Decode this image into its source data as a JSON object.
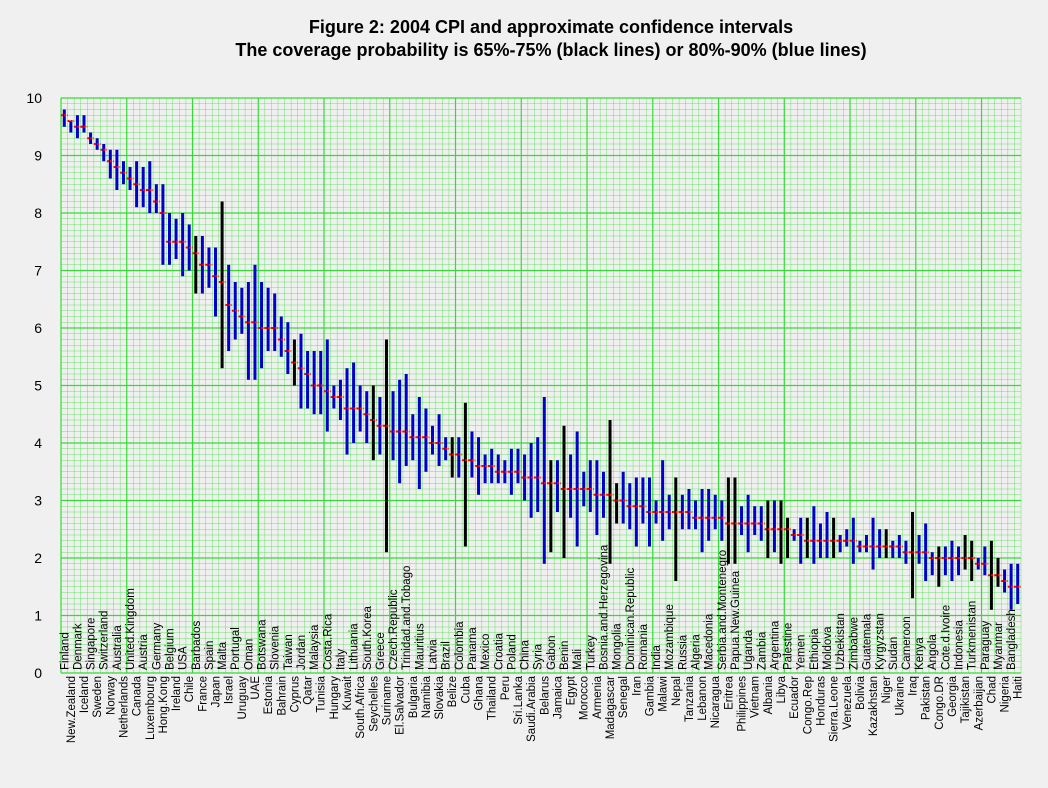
{
  "chart_data": {
    "type": "errorbar",
    "title": "Figure 2: 2004 CPI and approximate confidence intervals",
    "subtitle": "The coverage probability is 65%-75% (black lines) or 80%-90% (blue lines)",
    "ylim": [
      0,
      10
    ],
    "yticks": [
      "0",
      "1",
      "2",
      "3",
      "4",
      "5",
      "6",
      "7",
      "8",
      "9",
      "10"
    ],
    "grid": true,
    "colors": {
      "blue": "#0000cc",
      "black": "#000000",
      "point": "#ff0000",
      "grid": "#33dd33",
      "background": "#f0f0f0"
    },
    "countries": [
      {
        "name": "Finland",
        "score": 9.7,
        "low": 9.5,
        "high": 9.8,
        "ci": "blue"
      },
      {
        "name": "New.Zealand",
        "score": 9.6,
        "low": 9.4,
        "high": 9.6,
        "ci": "blue"
      },
      {
        "name": "Denmark",
        "score": 9.5,
        "low": 9.3,
        "high": 9.7,
        "ci": "blue"
      },
      {
        "name": "Iceland",
        "score": 9.5,
        "low": 9.4,
        "high": 9.7,
        "ci": "blue"
      },
      {
        "name": "Singapore",
        "score": 9.3,
        "low": 9.2,
        "high": 9.4,
        "ci": "blue"
      },
      {
        "name": "Sweden",
        "score": 9.2,
        "low": 9.1,
        "high": 9.3,
        "ci": "blue"
      },
      {
        "name": "Switzerland",
        "score": 9.1,
        "low": 8.9,
        "high": 9.2,
        "ci": "blue"
      },
      {
        "name": "Norway",
        "score": 8.9,
        "low": 8.6,
        "high": 9.1,
        "ci": "blue"
      },
      {
        "name": "Australia",
        "score": 8.8,
        "low": 8.4,
        "high": 9.1,
        "ci": "blue"
      },
      {
        "name": "Netherlands",
        "score": 8.7,
        "low": 8.5,
        "high": 8.9,
        "ci": "blue"
      },
      {
        "name": "United.Kingdom",
        "score": 8.6,
        "low": 8.4,
        "high": 8.8,
        "ci": "blue"
      },
      {
        "name": "Canada",
        "score": 8.5,
        "low": 8.1,
        "high": 8.9,
        "ci": "blue"
      },
      {
        "name": "Austria",
        "score": 8.4,
        "low": 8.1,
        "high": 8.8,
        "ci": "blue"
      },
      {
        "name": "Luxembourg",
        "score": 8.4,
        "low": 8.0,
        "high": 8.9,
        "ci": "blue"
      },
      {
        "name": "Germany",
        "score": 8.2,
        "low": 8.0,
        "high": 8.5,
        "ci": "blue"
      },
      {
        "name": "Hong.Kong",
        "score": 8.0,
        "low": 7.1,
        "high": 8.5,
        "ci": "blue"
      },
      {
        "name": "Belgium",
        "score": 7.5,
        "low": 7.1,
        "high": 8.0,
        "ci": "blue"
      },
      {
        "name": "Ireland",
        "score": 7.5,
        "low": 7.2,
        "high": 7.9,
        "ci": "blue"
      },
      {
        "name": "USA",
        "score": 7.5,
        "low": 6.9,
        "high": 8.0,
        "ci": "blue"
      },
      {
        "name": "Chile",
        "score": 7.4,
        "low": 7.0,
        "high": 7.8,
        "ci": "blue"
      },
      {
        "name": "Barbados",
        "score": 7.3,
        "low": 6.6,
        "high": 7.6,
        "ci": "black"
      },
      {
        "name": "France",
        "score": 7.1,
        "low": 6.6,
        "high": 7.6,
        "ci": "blue"
      },
      {
        "name": "Spain",
        "score": 7.1,
        "low": 6.7,
        "high": 7.4,
        "ci": "blue"
      },
      {
        "name": "Japan",
        "score": 6.9,
        "low": 6.2,
        "high": 7.4,
        "ci": "blue"
      },
      {
        "name": "Malta",
        "score": 6.8,
        "low": 5.3,
        "high": 8.2,
        "ci": "black"
      },
      {
        "name": "Israel",
        "score": 6.4,
        "low": 5.6,
        "high": 7.1,
        "ci": "blue"
      },
      {
        "name": "Portugal",
        "score": 6.3,
        "low": 5.8,
        "high": 6.8,
        "ci": "blue"
      },
      {
        "name": "Uruguay",
        "score": 6.2,
        "low": 5.9,
        "high": 6.7,
        "ci": "blue"
      },
      {
        "name": "Oman",
        "score": 6.1,
        "low": 5.1,
        "high": 6.8,
        "ci": "blue"
      },
      {
        "name": "UAE",
        "score": 6.1,
        "low": 5.1,
        "high": 7.1,
        "ci": "blue"
      },
      {
        "name": "Botswana",
        "score": 6.0,
        "low": 5.3,
        "high": 6.8,
        "ci": "blue"
      },
      {
        "name": "Estonia",
        "score": 6.0,
        "low": 5.6,
        "high": 6.7,
        "ci": "blue"
      },
      {
        "name": "Slovenia",
        "score": 6.0,
        "low": 5.6,
        "high": 6.6,
        "ci": "blue"
      },
      {
        "name": "Bahrain",
        "score": 5.8,
        "low": 5.5,
        "high": 6.2,
        "ci": "blue"
      },
      {
        "name": "Taiwan",
        "score": 5.6,
        "low": 5.2,
        "high": 6.1,
        "ci": "blue"
      },
      {
        "name": "Cyprus",
        "score": 5.4,
        "low": 5.0,
        "high": 5.8,
        "ci": "black"
      },
      {
        "name": "Jordan",
        "score": 5.3,
        "low": 4.6,
        "high": 5.9,
        "ci": "blue"
      },
      {
        "name": "Qatar",
        "score": 5.2,
        "low": 4.6,
        "high": 5.6,
        "ci": "blue"
      },
      {
        "name": "Malaysia",
        "score": 5.0,
        "low": 4.5,
        "high": 5.6,
        "ci": "blue"
      },
      {
        "name": "Tunisia",
        "score": 5.0,
        "low": 4.5,
        "high": 5.6,
        "ci": "blue"
      },
      {
        "name": "Costa.Rica",
        "score": 4.9,
        "low": 4.2,
        "high": 5.8,
        "ci": "blue"
      },
      {
        "name": "Hungary",
        "score": 4.8,
        "low": 4.6,
        "high": 5.0,
        "ci": "blue"
      },
      {
        "name": "Italy",
        "score": 4.8,
        "low": 4.4,
        "high": 5.1,
        "ci": "blue"
      },
      {
        "name": "Kuwait",
        "score": 4.6,
        "low": 3.8,
        "high": 5.3,
        "ci": "blue"
      },
      {
        "name": "Lithuania",
        "score": 4.6,
        "low": 4.0,
        "high": 5.4,
        "ci": "blue"
      },
      {
        "name": "South.Africa",
        "score": 4.6,
        "low": 4.2,
        "high": 5.0,
        "ci": "blue"
      },
      {
        "name": "South.Korea",
        "score": 4.5,
        "low": 4.0,
        "high": 4.9,
        "ci": "blue"
      },
      {
        "name": "Seychelles",
        "score": 4.4,
        "low": 3.7,
        "high": 5.0,
        "ci": "black"
      },
      {
        "name": "Greece",
        "score": 4.3,
        "low": 3.8,
        "high": 4.8,
        "ci": "blue"
      },
      {
        "name": "Suriname",
        "score": 4.3,
        "low": 2.1,
        "high": 5.8,
        "ci": "black"
      },
      {
        "name": "Czech.Republic",
        "score": 4.2,
        "low": 3.7,
        "high": 4.9,
        "ci": "blue"
      },
      {
        "name": "El.Salvador",
        "score": 4.2,
        "low": 3.3,
        "high": 5.1,
        "ci": "blue"
      },
      {
        "name": "Trinidad.and.Tobago",
        "score": 4.2,
        "low": 3.6,
        "high": 5.2,
        "ci": "blue"
      },
      {
        "name": "Bulgaria",
        "score": 4.1,
        "low": 3.7,
        "high": 4.5,
        "ci": "blue"
      },
      {
        "name": "Mauritius",
        "score": 4.1,
        "low": 3.2,
        "high": 4.8,
        "ci": "blue"
      },
      {
        "name": "Namibia",
        "score": 4.1,
        "low": 3.5,
        "high": 4.6,
        "ci": "blue"
      },
      {
        "name": "Latvia",
        "score": 4.0,
        "low": 3.8,
        "high": 4.3,
        "ci": "blue"
      },
      {
        "name": "Slovakia",
        "score": 4.0,
        "low": 3.6,
        "high": 4.5,
        "ci": "blue"
      },
      {
        "name": "Brazil",
        "score": 3.9,
        "low": 3.7,
        "high": 4.1,
        "ci": "blue"
      },
      {
        "name": "Belize",
        "score": 3.8,
        "low": 3.4,
        "high": 4.1,
        "ci": "black"
      },
      {
        "name": "Colombia",
        "score": 3.8,
        "low": 3.4,
        "high": 4.1,
        "ci": "blue"
      },
      {
        "name": "Cuba",
        "score": 3.7,
        "low": 2.2,
        "high": 4.7,
        "ci": "black"
      },
      {
        "name": "Panama",
        "score": 3.7,
        "low": 3.4,
        "high": 4.2,
        "ci": "blue"
      },
      {
        "name": "Ghana",
        "score": 3.6,
        "low": 3.1,
        "high": 4.1,
        "ci": "blue"
      },
      {
        "name": "Mexico",
        "score": 3.6,
        "low": 3.3,
        "high": 3.8,
        "ci": "blue"
      },
      {
        "name": "Thailand",
        "score": 3.6,
        "low": 3.3,
        "high": 3.9,
        "ci": "blue"
      },
      {
        "name": "Croatia",
        "score": 3.5,
        "low": 3.3,
        "high": 3.8,
        "ci": "blue"
      },
      {
        "name": "Peru",
        "score": 3.5,
        "low": 3.3,
        "high": 3.7,
        "ci": "blue"
      },
      {
        "name": "Poland",
        "score": 3.5,
        "low": 3.1,
        "high": 3.9,
        "ci": "blue"
      },
      {
        "name": "Sri.Lanka",
        "score": 3.5,
        "low": 3.3,
        "high": 3.9,
        "ci": "blue"
      },
      {
        "name": "China",
        "score": 3.4,
        "low": 3.0,
        "high": 3.8,
        "ci": "blue"
      },
      {
        "name": "Saudi.Arabia",
        "score": 3.4,
        "low": 2.7,
        "high": 4.0,
        "ci": "blue"
      },
      {
        "name": "Syria",
        "score": 3.4,
        "low": 2.8,
        "high": 4.1,
        "ci": "blue"
      },
      {
        "name": "Belarus",
        "score": 3.3,
        "low": 1.9,
        "high": 4.8,
        "ci": "blue"
      },
      {
        "name": "Gabon",
        "score": 3.3,
        "low": 2.1,
        "high": 3.7,
        "ci": "black"
      },
      {
        "name": "Jamaica",
        "score": 3.3,
        "low": 2.8,
        "high": 3.7,
        "ci": "blue"
      },
      {
        "name": "Benin",
        "score": 3.2,
        "low": 2.0,
        "high": 4.3,
        "ci": "black"
      },
      {
        "name": "Egypt",
        "score": 3.2,
        "low": 2.7,
        "high": 3.8,
        "ci": "blue"
      },
      {
        "name": "Mali",
        "score": 3.2,
        "low": 2.2,
        "high": 4.2,
        "ci": "blue"
      },
      {
        "name": "Morocco",
        "score": 3.2,
        "low": 2.9,
        "high": 3.5,
        "ci": "blue"
      },
      {
        "name": "Turkey",
        "score": 3.2,
        "low": 2.8,
        "high": 3.7,
        "ci": "blue"
      },
      {
        "name": "Armenia",
        "score": 3.1,
        "low": 2.4,
        "high": 3.7,
        "ci": "blue"
      },
      {
        "name": "Bosnia.and.Herzegovina",
        "score": 3.1,
        "low": 2.7,
        "high": 3.5,
        "ci": "blue"
      },
      {
        "name": "Madagascar",
        "score": 3.1,
        "low": 1.9,
        "high": 4.4,
        "ci": "black"
      },
      {
        "name": "Mongolia",
        "score": 3.0,
        "low": 2.6,
        "high": 3.3,
        "ci": "black"
      },
      {
        "name": "Senegal",
        "score": 3.0,
        "low": 2.6,
        "high": 3.5,
        "ci": "blue"
      },
      {
        "name": "Dominican.Republic",
        "score": 2.9,
        "low": 2.5,
        "high": 3.3,
        "ci": "blue"
      },
      {
        "name": "Iran",
        "score": 2.9,
        "low": 2.2,
        "high": 3.4,
        "ci": "blue"
      },
      {
        "name": "Romania",
        "score": 2.9,
        "low": 2.6,
        "high": 3.4,
        "ci": "blue"
      },
      {
        "name": "Gambia",
        "score": 2.8,
        "low": 2.2,
        "high": 3.4,
        "ci": "blue"
      },
      {
        "name": "India",
        "score": 2.8,
        "low": 2.6,
        "high": 3.0,
        "ci": "blue"
      },
      {
        "name": "Malawi",
        "score": 2.8,
        "low": 2.3,
        "high": 3.7,
        "ci": "blue"
      },
      {
        "name": "Mozambique",
        "score": 2.8,
        "low": 2.5,
        "high": 3.1,
        "ci": "blue"
      },
      {
        "name": "Nepal",
        "score": 2.8,
        "low": 1.6,
        "high": 3.4,
        "ci": "black"
      },
      {
        "name": "Russia",
        "score": 2.8,
        "low": 2.5,
        "high": 3.1,
        "ci": "blue"
      },
      {
        "name": "Tanzania",
        "score": 2.8,
        "low": 2.5,
        "high": 3.2,
        "ci": "blue"
      },
      {
        "name": "Algeria",
        "score": 2.7,
        "low": 2.5,
        "high": 3.0,
        "ci": "blue"
      },
      {
        "name": "Lebanon",
        "score": 2.7,
        "low": 2.1,
        "high": 3.2,
        "ci": "blue"
      },
      {
        "name": "Macedonia",
        "score": 2.7,
        "low": 2.3,
        "high": 3.2,
        "ci": "blue"
      },
      {
        "name": "Nicaragua",
        "score": 2.7,
        "low": 2.5,
        "high": 3.1,
        "ci": "blue"
      },
      {
        "name": "Serbia.and.Montenegro",
        "score": 2.7,
        "low": 2.3,
        "high": 3.0,
        "ci": "blue"
      },
      {
        "name": "Eritrea",
        "score": 2.6,
        "low": 1.9,
        "high": 3.4,
        "ci": "black"
      },
      {
        "name": "Papua.New.Guinea",
        "score": 2.6,
        "low": 1.9,
        "high": 3.4,
        "ci": "black"
      },
      {
        "name": "Philippines",
        "score": 2.6,
        "low": 2.4,
        "high": 2.9,
        "ci": "blue"
      },
      {
        "name": "Uganda",
        "score": 2.6,
        "low": 2.1,
        "high": 3.1,
        "ci": "blue"
      },
      {
        "name": "Vietnam",
        "score": 2.6,
        "low": 2.4,
        "high": 2.9,
        "ci": "blue"
      },
      {
        "name": "Zambia",
        "score": 2.6,
        "low": 2.3,
        "high": 2.9,
        "ci": "blue"
      },
      {
        "name": "Albania",
        "score": 2.5,
        "low": 2.0,
        "high": 3.0,
        "ci": "black"
      },
      {
        "name": "Argentina",
        "score": 2.5,
        "low": 2.1,
        "high": 3.0,
        "ci": "blue"
      },
      {
        "name": "Libya",
        "score": 2.5,
        "low": 1.9,
        "high": 3.0,
        "ci": "black"
      },
      {
        "name": "Palestine",
        "score": 2.5,
        "low": 2.0,
        "high": 2.7,
        "ci": "black"
      },
      {
        "name": "Ecuador",
        "score": 2.4,
        "low": 2.3,
        "high": 2.5,
        "ci": "blue"
      },
      {
        "name": "Yemen",
        "score": 2.4,
        "low": 1.9,
        "high": 2.7,
        "ci": "blue"
      },
      {
        "name": "Congo.Rep",
        "score": 2.3,
        "low": 2.0,
        "high": 2.7,
        "ci": "black"
      },
      {
        "name": "Ethiopia",
        "score": 2.3,
        "low": 1.9,
        "high": 2.9,
        "ci": "blue"
      },
      {
        "name": "Honduras",
        "score": 2.3,
        "low": 2.0,
        "high": 2.6,
        "ci": "blue"
      },
      {
        "name": "Moldova",
        "score": 2.3,
        "low": 2.0,
        "high": 2.8,
        "ci": "blue"
      },
      {
        "name": "Sierra.Leone",
        "score": 2.3,
        "low": 2.0,
        "high": 2.7,
        "ci": "black"
      },
      {
        "name": "Uzbekistan",
        "score": 2.3,
        "low": 2.1,
        "high": 2.4,
        "ci": "blue"
      },
      {
        "name": "Venezuela",
        "score": 2.3,
        "low": 2.2,
        "high": 2.5,
        "ci": "blue"
      },
      {
        "name": "Zimbabwe",
        "score": 2.3,
        "low": 1.9,
        "high": 2.7,
        "ci": "blue"
      },
      {
        "name": "Bolivia",
        "score": 2.2,
        "low": 2.1,
        "high": 2.3,
        "ci": "blue"
      },
      {
        "name": "Guatemala",
        "score": 2.2,
        "low": 2.1,
        "high": 2.4,
        "ci": "blue"
      },
      {
        "name": "Kazakhstan",
        "score": 2.2,
        "low": 1.8,
        "high": 2.7,
        "ci": "blue"
      },
      {
        "name": "Kyrgyzstan",
        "score": 2.2,
        "low": 2.0,
        "high": 2.5,
        "ci": "blue"
      },
      {
        "name": "Niger",
        "score": 2.2,
        "low": 2.0,
        "high": 2.5,
        "ci": "black"
      },
      {
        "name": "Sudan",
        "score": 2.2,
        "low": 2.0,
        "high": 2.3,
        "ci": "blue"
      },
      {
        "name": "Ukraine",
        "score": 2.2,
        "low": 2.0,
        "high": 2.4,
        "ci": "blue"
      },
      {
        "name": "Cameroon",
        "score": 2.1,
        "low": 1.9,
        "high": 2.3,
        "ci": "blue"
      },
      {
        "name": "Iraq",
        "score": 2.1,
        "low": 1.3,
        "high": 2.8,
        "ci": "black"
      },
      {
        "name": "Kenya",
        "score": 2.1,
        "low": 1.9,
        "high": 2.4,
        "ci": "blue"
      },
      {
        "name": "Pakistan",
        "score": 2.1,
        "low": 1.6,
        "high": 2.6,
        "ci": "blue"
      },
      {
        "name": "Angola",
        "score": 2.0,
        "low": 1.7,
        "high": 2.1,
        "ci": "blue"
      },
      {
        "name": "Congo.DR",
        "score": 2.0,
        "low": 1.5,
        "high": 2.2,
        "ci": "black"
      },
      {
        "name": "Cote.d.Ivoire",
        "score": 2.0,
        "low": 1.7,
        "high": 2.2,
        "ci": "blue"
      },
      {
        "name": "Georgia",
        "score": 2.0,
        "low": 1.6,
        "high": 2.3,
        "ci": "blue"
      },
      {
        "name": "Indonesia",
        "score": 2.0,
        "low": 1.7,
        "high": 2.2,
        "ci": "blue"
      },
      {
        "name": "Tajikistan",
        "score": 2.0,
        "low": 1.8,
        "high": 2.4,
        "ci": "black"
      },
      {
        "name": "Turkmenistan",
        "score": 2.0,
        "low": 1.6,
        "high": 2.3,
        "ci": "black"
      },
      {
        "name": "Azerbaijan",
        "score": 1.9,
        "low": 1.8,
        "high": 2.0,
        "ci": "blue"
      },
      {
        "name": "Paraguay",
        "score": 1.9,
        "low": 1.7,
        "high": 2.2,
        "ci": "blue"
      },
      {
        "name": "Chad",
        "score": 1.7,
        "low": 1.1,
        "high": 2.3,
        "ci": "black"
      },
      {
        "name": "Myanmar",
        "score": 1.7,
        "low": 1.5,
        "high": 2.0,
        "ci": "black"
      },
      {
        "name": "Nigeria",
        "score": 1.6,
        "low": 1.4,
        "high": 1.8,
        "ci": "blue"
      },
      {
        "name": "Bangladesh",
        "score": 1.5,
        "low": 1.1,
        "high": 1.9,
        "ci": "blue"
      },
      {
        "name": "Haiti",
        "score": 1.5,
        "low": 1.2,
        "high": 1.9,
        "ci": "blue"
      }
    ]
  }
}
